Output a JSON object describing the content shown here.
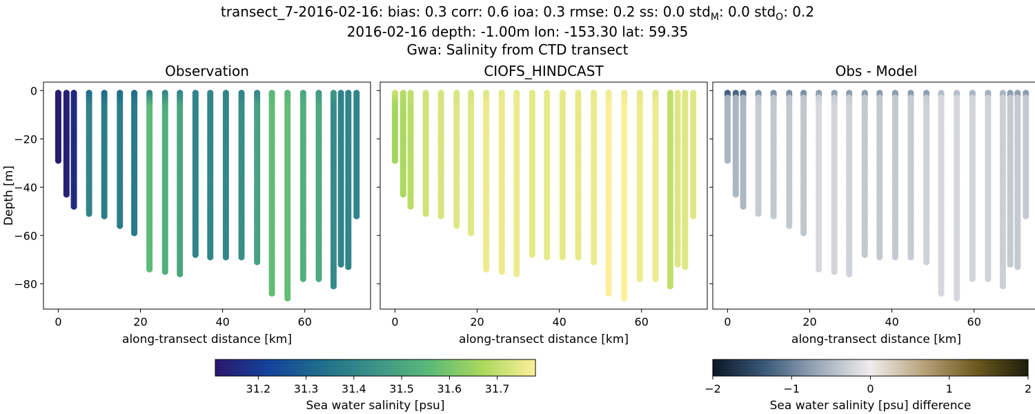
{
  "figure_title": {
    "line1": "transect_7-2016-02-16: bias: 0.3  corr: 0.6  ioa: 0.3  rmse: 0.2  ss: 0.0  std",
    "std_m_sub": "M",
    "line1_mid": ": 0.0  std",
    "std_o_sub": "O",
    "line1_end": ": 0.2",
    "line2": "2016-02-16 depth: -1.00m lon: -153.30 lat: 59.35",
    "line3": "Gwa: Salinity from CTD transect"
  },
  "chart_data": {
    "type": "scatter",
    "panels": [
      {
        "title": "Observation",
        "xlabel": "along-transect distance [km]",
        "ylabel": "Depth [m]",
        "colormap": "haline"
      },
      {
        "title": "CIOFS_HINDCAST",
        "xlabel": "along-transect distance [km]",
        "ylabel": "",
        "colormap": "haline"
      },
      {
        "title": "Obs - Model",
        "xlabel": "along-transect distance [km]",
        "ylabel": "",
        "colormap": "diff"
      }
    ],
    "xlim": [
      -3.6,
      76.0
    ],
    "ylim": [
      -90.5,
      3.5
    ],
    "xticks": [
      0,
      20,
      40,
      60
    ],
    "yticks": [
      0,
      -20,
      -40,
      -60,
      -80
    ],
    "ytick_labels": [
      "0",
      "−20",
      "−40",
      "−60",
      "−80"
    ],
    "stations": [
      {
        "x": 0.0,
        "max_depth": -29.5,
        "obs_top": 31.12,
        "obs": 31.12,
        "model_top": 31.71,
        "model": 31.66
      },
      {
        "x": 2.0,
        "max_depth": -43.5,
        "obs_top": 31.13,
        "obs": 31.13,
        "model_top": 31.69,
        "model": 31.67
      },
      {
        "x": 3.8,
        "max_depth": -48.5,
        "obs_top": 31.15,
        "obs": 31.16,
        "model_top": 31.7,
        "model": 31.69
      },
      {
        "x": 7.5,
        "max_depth": -51.0,
        "obs_top": 31.33,
        "obs": 31.4,
        "model_top": 31.72,
        "model": 31.72
      },
      {
        "x": 11.2,
        "max_depth": -52.5,
        "obs_top": 31.33,
        "obs": 31.38,
        "model_top": 31.73,
        "model": 31.73
      },
      {
        "x": 15.0,
        "max_depth": -56.0,
        "obs_top": 31.33,
        "obs": 31.38,
        "model_top": 31.73,
        "model": 31.74
      },
      {
        "x": 18.5,
        "max_depth": -59.0,
        "obs_top": 31.33,
        "obs": 31.37,
        "model_top": 31.73,
        "model": 31.74
      },
      {
        "x": 22.2,
        "max_depth": -74.0,
        "obs_top": 31.4,
        "obs": 31.56,
        "model_top": 31.74,
        "model": 31.76
      },
      {
        "x": 26.0,
        "max_depth": -75.0,
        "obs_top": 31.4,
        "obs": 31.52,
        "model_top": 31.75,
        "model": 31.76
      },
      {
        "x": 29.6,
        "max_depth": -76.0,
        "obs_top": 31.4,
        "obs": 31.5,
        "model_top": 31.75,
        "model": 31.76
      },
      {
        "x": 33.4,
        "max_depth": -68.5,
        "obs_top": 31.4,
        "obs": 31.4,
        "model_top": 31.75,
        "model": 31.75
      },
      {
        "x": 37.0,
        "max_depth": -69.5,
        "obs_top": 31.4,
        "obs": 31.41,
        "model_top": 31.75,
        "model": 31.75
      },
      {
        "x": 40.8,
        "max_depth": -69.5,
        "obs_top": 31.4,
        "obs": 31.41,
        "model_top": 31.75,
        "model": 31.75
      },
      {
        "x": 44.6,
        "max_depth": -69.5,
        "obs_top": 31.4,
        "obs": 31.43,
        "model_top": 31.75,
        "model": 31.75
      },
      {
        "x": 48.4,
        "max_depth": -71.0,
        "obs_top": 31.41,
        "obs": 31.49,
        "model_top": 31.75,
        "model": 31.76
      },
      {
        "x": 52.0,
        "max_depth": -84.0,
        "obs_top": 31.55,
        "obs": 31.57,
        "model_top": 31.76,
        "model": 31.78
      },
      {
        "x": 55.8,
        "max_depth": -86.0,
        "obs_top": 31.55,
        "obs": 31.57,
        "model_top": 31.76,
        "model": 31.78
      },
      {
        "x": 59.6,
        "max_depth": -78.0,
        "obs_top": 31.5,
        "obs": 31.53,
        "model_top": 31.75,
        "model": 31.76
      },
      {
        "x": 63.4,
        "max_depth": -78.0,
        "obs_top": 31.46,
        "obs": 31.51,
        "model_top": 31.74,
        "model": 31.76
      },
      {
        "x": 67.0,
        "max_depth": -81.0,
        "obs_top": 31.46,
        "obs": 31.42,
        "model_top": 31.7,
        "model": 31.7
      },
      {
        "x": 68.8,
        "max_depth": -72.5,
        "obs_top": 31.4,
        "obs": 31.4,
        "model_top": 31.74,
        "model": 31.74
      },
      {
        "x": 70.6,
        "max_depth": -73.0,
        "obs_top": 31.4,
        "obs": 31.4,
        "model_top": 31.74,
        "model": 31.74
      },
      {
        "x": 72.6,
        "max_depth": -52.5,
        "obs_top": 31.4,
        "obs": 31.4,
        "model_top": 31.74,
        "model": 31.74
      }
    ],
    "colorbar_salinity": {
      "label": "Sea water salinity [psu]",
      "vmin": 31.11,
      "vmax": 31.78,
      "ticks": [
        31.2,
        31.3,
        31.4,
        31.5,
        31.6,
        31.7
      ],
      "tick_labels": [
        "31.2",
        "31.3",
        "31.4",
        "31.5",
        "31.6",
        "31.7"
      ]
    },
    "colorbar_difference": {
      "label": "Sea water salinity [psu] difference",
      "vmin": -2,
      "vmax": 2,
      "ticks": [
        -2,
        -1,
        0,
        1,
        2
      ],
      "tick_labels": [
        "−2",
        "−1",
        "0",
        "1",
        "2"
      ]
    }
  },
  "colors": {
    "haline": [
      "#2a186c",
      "#14439c",
      "#206e8b",
      "#3c9387",
      "#5ab978",
      "#aad85c",
      "#fdef9a"
    ],
    "diff": [
      "#0b1727",
      "#3b5a79",
      "#9aa9b8",
      "#f1ecec",
      "#b9a37c",
      "#6d5a1d",
      "#1c1e0c"
    ]
  }
}
